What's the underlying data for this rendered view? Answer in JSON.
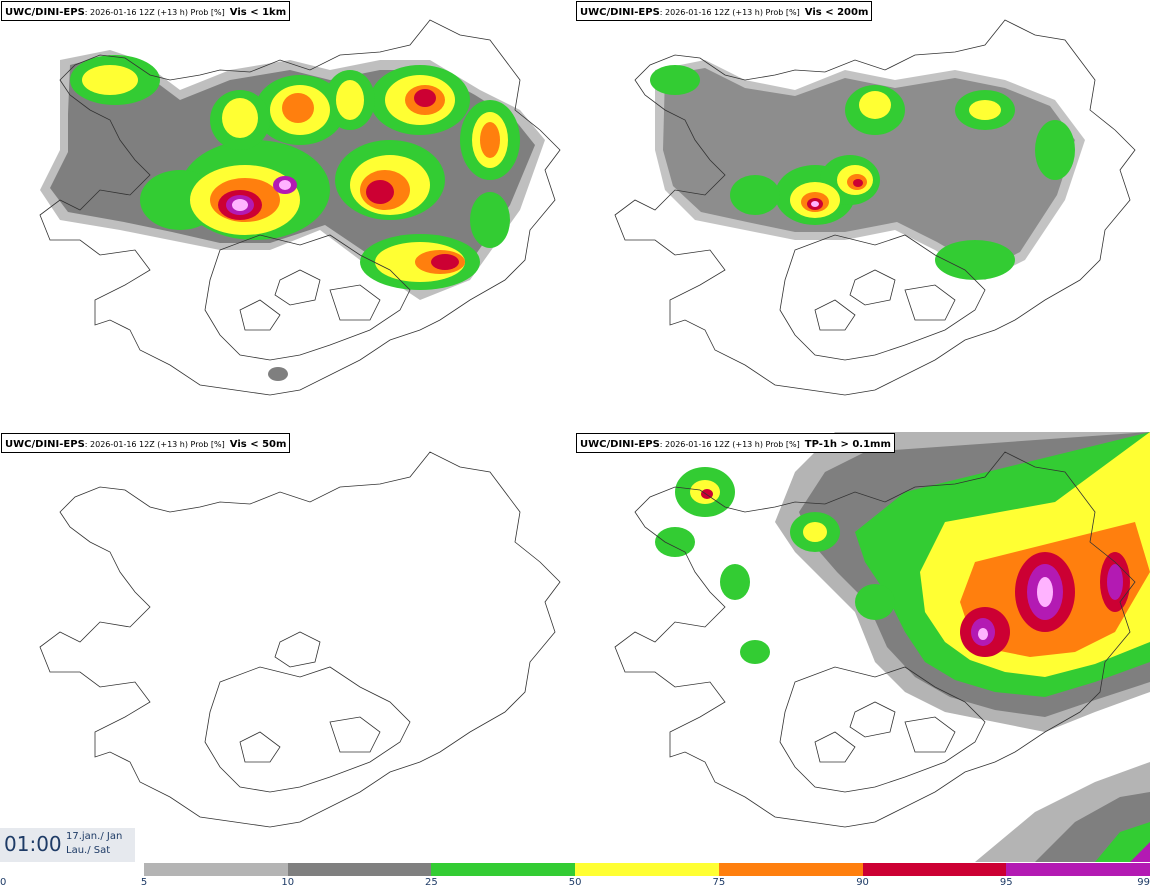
{
  "panels": [
    {
      "model": "UWC/DINI-EPS",
      "meta": "2026-01-16 12Z (+13 h) Prob [%]",
      "cond": "Vis < 1km"
    },
    {
      "model": "UWC/DINI-EPS",
      "meta": "2026-01-16 12Z (+13 h) Prob [%]",
      "cond": "Vis < 200m"
    },
    {
      "model": "UWC/DINI-EPS",
      "meta": "2026-01-16 12Z (+13 h) Prob [%]",
      "cond": "Vis < 50m"
    },
    {
      "model": "UWC/DINI-EPS",
      "meta": "2026-01-16 12Z (+13 h) Prob [%]",
      "cond": "TP-1h > 0.1mm"
    }
  ],
  "valid_time": {
    "clock": "01:00",
    "date": "17.jan./ Jan",
    "weekday": "Lau./ Sat"
  },
  "colorbar": {
    "ticks": [
      "0",
      "5",
      "10",
      "25",
      "50",
      "75",
      "90",
      "95",
      "99"
    ],
    "colors": [
      "#ffffff",
      "#b4b4b4",
      "#7f7f7f",
      "#33cc33",
      "#ffff33",
      "#ff7f0e",
      "#cc0033",
      "#b31ab3",
      "#ffb3ff"
    ]
  },
  "colors": {
    "title_text": "#1e3b66",
    "coastline": "#333333",
    "land": "#ffffff"
  }
}
